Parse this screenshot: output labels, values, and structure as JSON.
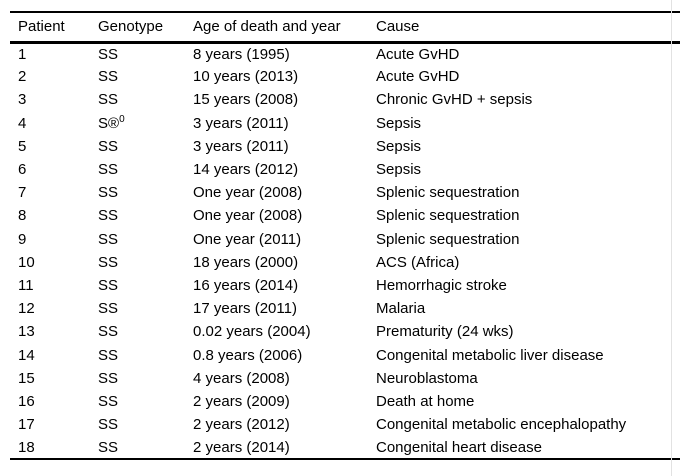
{
  "page": {
    "background_color": "#ffffff",
    "rule_color": "#000000",
    "edge_line_color": "#e2e2e2"
  },
  "table": {
    "columns": [
      "Patient",
      "Genotype",
      "Age of death and year",
      "Cause"
    ],
    "rows": [
      {
        "patient": "1",
        "genotype": "SS",
        "genotype_sup": "",
        "age": "8 years (1995)",
        "cause": "Acute GvHD"
      },
      {
        "patient": "2",
        "genotype": "SS",
        "genotype_sup": "",
        "age": "10 years (2013)",
        "cause": "Acute GvHD"
      },
      {
        "patient": "3",
        "genotype": "SS",
        "genotype_sup": "",
        "age": "15 years (2008)",
        "cause": "Chronic GvHD + sepsis"
      },
      {
        "patient": "4",
        "genotype": "S®",
        "genotype_sup": "0",
        "age": "3 years (2011)",
        "cause": "Sepsis"
      },
      {
        "patient": "5",
        "genotype": "SS",
        "genotype_sup": "",
        "age": "3 years (2011)",
        "cause": "Sepsis"
      },
      {
        "patient": "6",
        "genotype": "SS",
        "genotype_sup": "",
        "age": "14 years (2012)",
        "cause": "Sepsis"
      },
      {
        "patient": "7",
        "genotype": "SS",
        "genotype_sup": "",
        "age": "One year (2008)",
        "cause": "Splenic sequestration"
      },
      {
        "patient": "8",
        "genotype": "SS",
        "genotype_sup": "",
        "age": "One year (2008)",
        "cause": "Splenic sequestration"
      },
      {
        "patient": "9",
        "genotype": "SS",
        "genotype_sup": "",
        "age": "One year (2011)",
        "cause": "Splenic sequestration"
      },
      {
        "patient": "10",
        "genotype": "SS",
        "genotype_sup": "",
        "age": "18 years (2000)",
        "cause": "ACS (Africa)"
      },
      {
        "patient": "11",
        "genotype": "SS",
        "genotype_sup": "",
        "age": "16 years (2014)",
        "cause": "Hemorrhagic stroke"
      },
      {
        "patient": "12",
        "genotype": "SS",
        "genotype_sup": "",
        "age": "17 years (2011)",
        "cause": "Malaria"
      },
      {
        "patient": "13",
        "genotype": "SS",
        "genotype_sup": "",
        "age": "0.02 years (2004)",
        "cause": "Prematurity (24 wks)"
      },
      {
        "patient": "14",
        "genotype": "SS",
        "genotype_sup": "",
        "age": "0.8 years (2006)",
        "cause": "Congenital metabolic liver disease"
      },
      {
        "patient": "15",
        "genotype": "SS",
        "genotype_sup": "",
        "age": "4 years (2008)",
        "cause": "Neuroblastoma"
      },
      {
        "patient": "16",
        "genotype": "SS",
        "genotype_sup": "",
        "age": "2 years (2009)",
        "cause": "Death at home"
      },
      {
        "patient": "17",
        "genotype": "SS",
        "genotype_sup": "",
        "age": "2 years (2012)",
        "cause": "Congenital metabolic encephalopathy"
      },
      {
        "patient": "18",
        "genotype": "SS",
        "genotype_sup": "",
        "age": "2 years (2014)",
        "cause": "Congenital heart disease"
      }
    ]
  }
}
